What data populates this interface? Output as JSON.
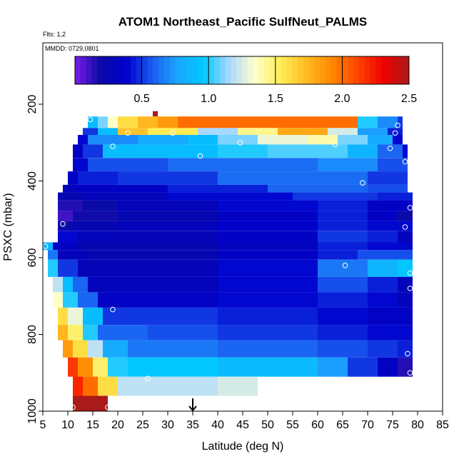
{
  "chart_data": {
    "type": "heatmap",
    "title": "ATOM1 Northeast_Pacific SulfNeut_PALMS",
    "flights_text": "Flts: 1,2",
    "mmdd_text": "MMDD: 0729,0801",
    "xlabel": "Latitude (deg N)",
    "ylabel": "PSXC (mbar)",
    "xlim": [
      5,
      85
    ],
    "ylim": [
      1000,
      0
    ],
    "x_ticks": [
      "5",
      "10",
      "15",
      "20",
      "25",
      "30",
      "35",
      "40",
      "45",
      "50",
      "55",
      "60",
      "65",
      "70",
      "75",
      "80",
      "85"
    ],
    "y_ticks": [
      "200",
      "400",
      "600",
      "800",
      "1000"
    ],
    "colorbar": {
      "range": [
        0,
        2.5
      ],
      "ticks": [
        "0.5",
        "1.0",
        "1.5",
        "2.0",
        "2.5"
      ],
      "colors": [
        "#7a1ee6",
        "#0a0aa6",
        "#0000cc",
        "#1a5cf0",
        "#1aa6ff",
        "#00c8ff",
        "#aad8ff",
        "#ffffcc",
        "#ffee55",
        "#ffbb22",
        "#ff8800",
        "#ff4400",
        "#ee0000",
        "#aa1a1a"
      ]
    },
    "marker": {
      "label": "arrow",
      "x": 35
    },
    "rows": [
      {
        "p0": 218,
        "p1": 232,
        "segs": [
          [
            27,
            28,
            2.5
          ]
        ]
      },
      {
        "p0": 232,
        "p1": 262,
        "segs": [
          [
            14,
            16,
            0.9
          ],
          [
            16,
            18,
            1.1
          ],
          [
            18,
            20,
            1.35
          ],
          [
            20,
            24,
            1.6
          ],
          [
            24,
            28,
            1.75
          ],
          [
            28,
            32,
            1.85
          ],
          [
            32,
            68,
            2.0
          ],
          [
            68,
            72,
            1.0
          ],
          [
            72,
            76,
            0.7
          ],
          [
            76,
            77,
            0.5
          ]
        ]
      },
      {
        "p0": 262,
        "p1": 280,
        "segs": [
          [
            13,
            16,
            0.5
          ],
          [
            16,
            20,
            0.9
          ],
          [
            20,
            26,
            1.7
          ],
          [
            26,
            36,
            1.55
          ],
          [
            36,
            44,
            1.15
          ],
          [
            44,
            52,
            1.45
          ],
          [
            52,
            62,
            1.8
          ],
          [
            62,
            68,
            1.25
          ],
          [
            68,
            74,
            0.75
          ],
          [
            74,
            77,
            0.45
          ]
        ]
      },
      {
        "p0": 280,
        "p1": 305,
        "segs": [
          [
            12,
            14,
            0.4
          ],
          [
            14,
            24,
            0.7
          ],
          [
            24,
            34,
            0.8
          ],
          [
            34,
            40,
            0.9
          ],
          [
            40,
            48,
            1.1
          ],
          [
            48,
            58,
            1.3
          ],
          [
            58,
            64,
            1.4
          ],
          [
            64,
            70,
            1.1
          ],
          [
            70,
            75,
            0.8
          ],
          [
            75,
            77,
            0.4
          ]
        ]
      },
      {
        "p0": 305,
        "p1": 340,
        "segs": [
          [
            11,
            13,
            0.35
          ],
          [
            13,
            17,
            0.5
          ],
          [
            17,
            40,
            0.9
          ],
          [
            40,
            50,
            1.0
          ],
          [
            50,
            66,
            1.05
          ],
          [
            66,
            72,
            0.85
          ],
          [
            72,
            77,
            0.6
          ],
          [
            77,
            78,
            0.4
          ]
        ]
      },
      {
        "p0": 340,
        "p1": 375,
        "segs": [
          [
            11,
            14,
            0.4
          ],
          [
            14,
            30,
            0.55
          ],
          [
            30,
            60,
            0.62
          ],
          [
            60,
            72,
            0.7
          ],
          [
            72,
            78,
            0.55
          ]
        ]
      },
      {
        "p0": 375,
        "p1": 410,
        "segs": [
          [
            10,
            12,
            0.35
          ],
          [
            12,
            20,
            0.45
          ],
          [
            20,
            40,
            0.5
          ],
          [
            40,
            70,
            0.62
          ],
          [
            70,
            78,
            0.5
          ]
        ]
      },
      {
        "p0": 410,
        "p1": 430,
        "segs": [
          [
            9,
            12,
            0.3
          ],
          [
            12,
            30,
            0.35
          ],
          [
            30,
            50,
            0.45
          ],
          [
            50,
            70,
            0.6
          ],
          [
            70,
            78,
            0.55
          ]
        ]
      },
      {
        "p0": 430,
        "p1": 450,
        "segs": [
          [
            8,
            13,
            0.25
          ],
          [
            13,
            30,
            0.3
          ],
          [
            30,
            55,
            0.4
          ],
          [
            55,
            72,
            0.5
          ],
          [
            72,
            79,
            0.45
          ]
        ]
      },
      {
        "p0": 450,
        "p1": 478,
        "segs": [
          [
            8,
            13,
            0.15
          ],
          [
            13,
            20,
            0.2
          ],
          [
            20,
            40,
            0.3
          ],
          [
            40,
            60,
            0.4
          ],
          [
            60,
            70,
            0.45
          ],
          [
            70,
            79,
            0.35
          ]
        ]
      },
      {
        "p0": 478,
        "p1": 505,
        "segs": [
          [
            8,
            11,
            0.1
          ],
          [
            11,
            20,
            0.18
          ],
          [
            20,
            40,
            0.25
          ],
          [
            40,
            60,
            0.35
          ],
          [
            60,
            70,
            0.45
          ],
          [
            70,
            76,
            0.35
          ],
          [
            76,
            79,
            0.2
          ]
        ]
      },
      {
        "p0": 505,
        "p1": 530,
        "segs": [
          [
            8,
            11,
            0.2
          ],
          [
            11,
            20,
            0.25
          ],
          [
            20,
            40,
            0.3
          ],
          [
            40,
            60,
            0.38
          ],
          [
            60,
            70,
            0.45
          ],
          [
            70,
            79,
            0.4
          ]
        ]
      },
      {
        "p0": 530,
        "p1": 560,
        "segs": [
          [
            8,
            12,
            0.4
          ],
          [
            12,
            20,
            0.3
          ],
          [
            20,
            40,
            0.28
          ],
          [
            40,
            60,
            0.35
          ],
          [
            60,
            70,
            0.5
          ],
          [
            70,
            76,
            0.45
          ],
          [
            76,
            79,
            0.3
          ]
        ]
      },
      {
        "p0": 560,
        "p1": 580,
        "segs": [
          [
            5,
            7,
            0.85
          ],
          [
            7,
            12,
            0.35
          ],
          [
            12,
            40,
            0.25
          ],
          [
            40,
            60,
            0.32
          ],
          [
            60,
            70,
            0.45
          ],
          [
            70,
            79,
            0.4
          ]
        ]
      },
      {
        "p0": 580,
        "p1": 605,
        "segs": [
          [
            6,
            8,
            0.65
          ],
          [
            8,
            14,
            0.3
          ],
          [
            14,
            40,
            0.25
          ],
          [
            40,
            60,
            0.35
          ],
          [
            60,
            68,
            0.45
          ],
          [
            68,
            79,
            0.55
          ]
        ]
      },
      {
        "p0": 605,
        "p1": 650,
        "segs": [
          [
            6,
            8,
            1.0
          ],
          [
            8,
            12,
            0.5
          ],
          [
            12,
            40,
            0.28
          ],
          [
            40,
            60,
            0.4
          ],
          [
            60,
            70,
            0.65
          ],
          [
            70,
            76,
            0.85
          ],
          [
            76,
            79,
            0.95
          ]
        ]
      },
      {
        "p0": 650,
        "p1": 690,
        "segs": [
          [
            7,
            9,
            1.2
          ],
          [
            9,
            11,
            0.9
          ],
          [
            11,
            14,
            0.6
          ],
          [
            14,
            40,
            0.3
          ],
          [
            40,
            60,
            0.4
          ],
          [
            60,
            70,
            0.55
          ],
          [
            70,
            76,
            0.45
          ],
          [
            76,
            79,
            0.3
          ]
        ]
      },
      {
        "p0": 690,
        "p1": 730,
        "segs": [
          [
            7,
            9,
            1.35
          ],
          [
            9,
            12,
            1.0
          ],
          [
            12,
            16,
            0.6
          ],
          [
            16,
            40,
            0.35
          ],
          [
            40,
            60,
            0.4
          ],
          [
            60,
            70,
            0.45
          ],
          [
            70,
            76,
            0.4
          ],
          [
            76,
            79,
            0.3
          ]
        ]
      },
      {
        "p0": 730,
        "p1": 775,
        "segs": [
          [
            8,
            10,
            1.6
          ],
          [
            10,
            13,
            1.3
          ],
          [
            13,
            17,
            0.9
          ],
          [
            17,
            40,
            0.5
          ],
          [
            40,
            60,
            0.45
          ],
          [
            60,
            70,
            0.4
          ],
          [
            70,
            79,
            0.35
          ]
        ]
      },
      {
        "p0": 775,
        "p1": 815,
        "segs": [
          [
            8,
            10,
            1.75
          ],
          [
            10,
            13,
            1.5
          ],
          [
            13,
            16,
            1.0
          ],
          [
            16,
            26,
            0.6
          ],
          [
            26,
            40,
            0.55
          ],
          [
            40,
            60,
            0.5
          ],
          [
            60,
            70,
            0.45
          ],
          [
            70,
            79,
            0.4
          ]
        ]
      },
      {
        "p0": 815,
        "p1": 860,
        "segs": [
          [
            9,
            11,
            1.85
          ],
          [
            11,
            14,
            1.6
          ],
          [
            14,
            17,
            1.2
          ],
          [
            17,
            22,
            0.8
          ],
          [
            22,
            40,
            0.65
          ],
          [
            40,
            60,
            0.6
          ],
          [
            60,
            70,
            0.55
          ],
          [
            70,
            76,
            0.5
          ],
          [
            76,
            79,
            0.45
          ]
        ]
      },
      {
        "p0": 860,
        "p1": 910,
        "segs": [
          [
            10,
            12,
            2.15
          ],
          [
            12,
            15,
            1.9
          ],
          [
            15,
            18,
            1.5
          ],
          [
            18,
            22,
            1.0
          ],
          [
            22,
            40,
            0.95
          ],
          [
            40,
            60,
            0.88
          ],
          [
            60,
            66,
            0.75
          ],
          [
            66,
            72,
            0.5
          ],
          [
            72,
            76,
            0.35
          ],
          [
            76,
            79,
            0.15
          ]
        ]
      },
      {
        "p0": 910,
        "p1": 960,
        "segs": [
          [
            11,
            13,
            2.2
          ],
          [
            13,
            16,
            2.0
          ],
          [
            16,
            20,
            1.6
          ],
          [
            20,
            26,
            1.2
          ],
          [
            26,
            40,
            1.2
          ],
          [
            40,
            48,
            1.25
          ]
        ]
      },
      {
        "p0": 960,
        "p1": 1000,
        "segs": [
          [
            11,
            18,
            2.5
          ]
        ]
      }
    ],
    "points": [
      [
        14.5,
        240
      ],
      [
        27.5,
        200
      ],
      [
        22,
        275
      ],
      [
        31,
        275
      ],
      [
        19,
        310
      ],
      [
        36.5,
        335
      ],
      [
        44.5,
        300
      ],
      [
        63.5,
        305
      ],
      [
        67,
        220
      ],
      [
        76,
        255
      ],
      [
        75.5,
        275
      ],
      [
        74.5,
        315
      ],
      [
        77.5,
        350
      ],
      [
        69,
        405
      ],
      [
        78.5,
        470
      ],
      [
        9,
        512
      ],
      [
        77.5,
        520
      ],
      [
        5.5,
        570
      ],
      [
        65.5,
        620
      ],
      [
        78.5,
        640
      ],
      [
        78.5,
        680
      ],
      [
        19,
        735
      ],
      [
        78,
        850
      ],
      [
        78.5,
        900
      ],
      [
        26,
        915
      ],
      [
        11,
        990
      ],
      [
        18,
        990
      ]
    ]
  }
}
